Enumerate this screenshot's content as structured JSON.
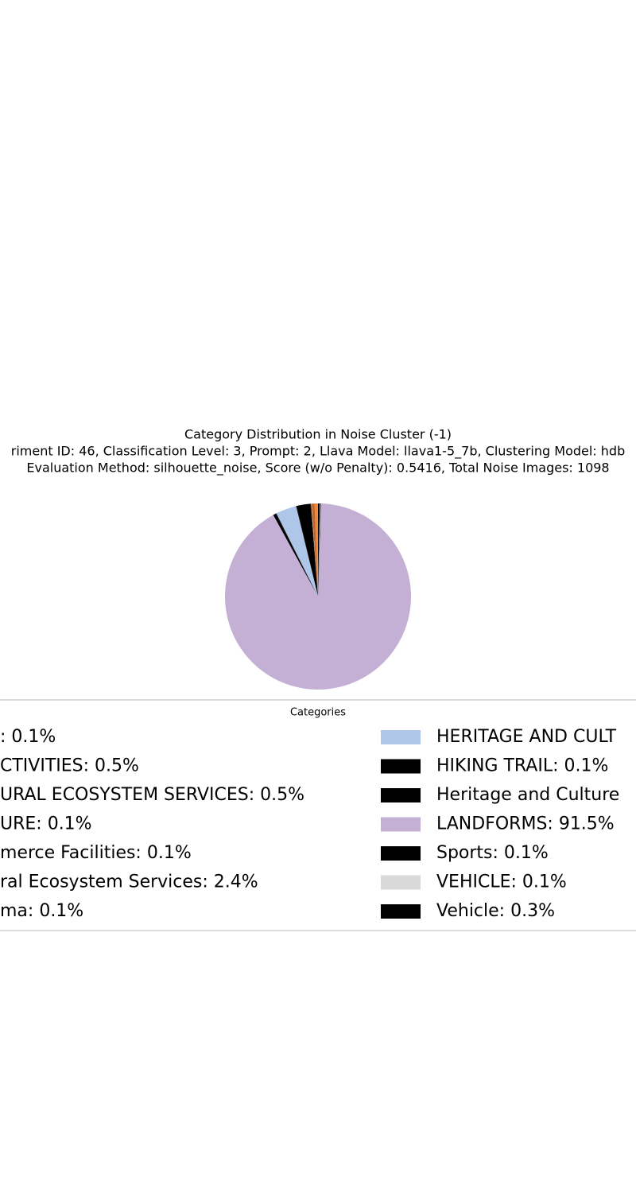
{
  "chart_data": {
    "type": "pie",
    "title": "Category Distribution in Noise Cluster (-1)",
    "subtitle": "riment ID: 46, Classification Level: 3, Prompt: 2, Llava Model: llava1-5_7b, Clustering Model: hdb",
    "subtitle2": "Evaluation Method: silhouette_noise, Score (w/o Penalty): 0.5416, Total Noise Images: 1098",
    "legend_title": "Categories",
    "categories": [
      ": 0.1%",
      "CTIVITIES: 0.5%",
      "URAL ECOSYSTEM SERVICES: 0.5%",
      "URE: 0.1%",
      "merce Facilities: 0.1%",
      "ral Ecosystem Services: 2.4%",
      "ma: 0.1%",
      "HERITAGE AND CULT",
      "HIKING TRAIL: 0.1%",
      "Heritage and Culture",
      "LANDFORMS: 91.5%",
      "Sports: 0.1%",
      "VEHICLE: 0.1%",
      "Vehicle: 0.3%"
    ],
    "values": [
      0.1,
      0.5,
      0.5,
      0.1,
      0.1,
      2.4,
      0.1,
      3.6,
      0.1,
      0.5,
      91.5,
      0.1,
      0.1,
      0.3
    ],
    "colors": [
      "#ff7f0e",
      "#e8873a",
      "#c0622a",
      "#ffbb78",
      "#000000",
      "#000000",
      "#000000",
      "#aec7e8",
      "#000000",
      "#000000",
      "#c5b0d5",
      "#000000",
      "#d9d9d9",
      "#000000"
    ]
  }
}
